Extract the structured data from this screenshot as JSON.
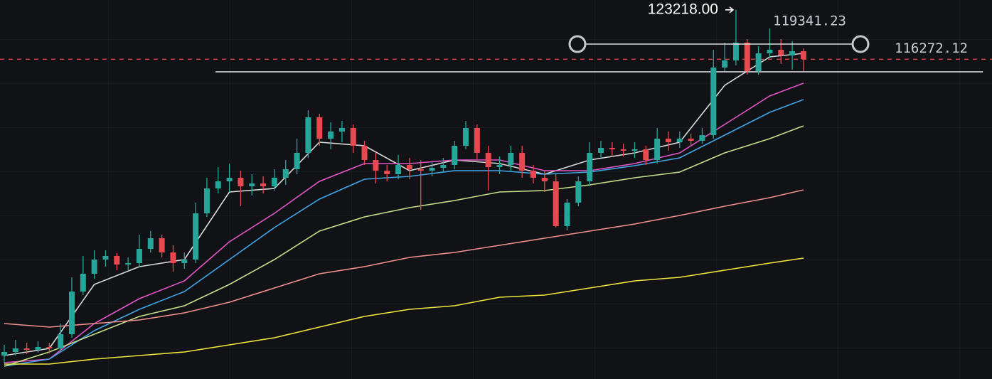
{
  "chart_data": {
    "type": "candlestick",
    "ylim": [
      71300,
      124600
    ],
    "up_color": "#26a69a",
    "down_color": "#e8484f",
    "open": [
      74600,
      75100,
      75600,
      75400,
      75800,
      75600,
      77600,
      83600,
      86100,
      88100,
      88600,
      87400,
      87600,
      89600,
      91100,
      89100,
      87600,
      88100,
      94600,
      98100,
      99100,
      99600,
      98400,
      98800,
      98400,
      99600,
      100800,
      103100,
      108100,
      105100,
      106100,
      106600,
      104100,
      102100,
      100600,
      100100,
      101400,
      100800,
      100600,
      101000,
      101400,
      104100,
      106600,
      103100,
      101100,
      101400,
      103100,
      100600,
      99600,
      99100,
      92800,
      96100,
      99100,
      103100,
      103800,
      103600,
      103400,
      103600,
      102100,
      105100,
      104600,
      105100,
      104800,
      105600,
      115100,
      116100,
      118600,
      114600,
      117100,
      117600,
      116800,
      117400
    ],
    "high": [
      76100,
      76800,
      76400,
      76600,
      76400,
      79100,
      85600,
      88600,
      89400,
      89400,
      89000,
      88400,
      91600,
      92100,
      91600,
      90100,
      89100,
      96100,
      99600,
      101100,
      101600,
      100600,
      100100,
      99800,
      100800,
      102100,
      105100,
      109100,
      108600,
      107400,
      107600,
      107100,
      104800,
      103100,
      101400,
      102800,
      102400,
      102100,
      101800,
      102400,
      104800,
      107600,
      107100,
      104100,
      102600,
      104100,
      104100,
      101400,
      100600,
      100100,
      96600,
      99800,
      104600,
      104800,
      104600,
      104400,
      104600,
      104100,
      106600,
      106100,
      106100,
      105800,
      106600,
      117600,
      118600,
      123218,
      119100,
      118100,
      120600,
      119100,
      118800,
      117800
    ],
    "low": [
      73600,
      74600,
      74800,
      75000,
      74900,
      75100,
      77100,
      83100,
      85400,
      87100,
      86600,
      86600,
      87100,
      89100,
      88400,
      86400,
      86800,
      87600,
      94100,
      97400,
      97600,
      95600,
      97100,
      97400,
      97800,
      98600,
      100100,
      102400,
      104100,
      103600,
      104600,
      103100,
      101400,
      98800,
      99100,
      99400,
      99400,
      95100,
      99800,
      100400,
      100800,
      103600,
      102100,
      97800,
      100100,
      100600,
      99600,
      98800,
      97600,
      92600,
      92200,
      95600,
      98400,
      102400,
      102600,
      102600,
      102400,
      101400,
      101600,
      103400,
      103800,
      104100,
      104400,
      105100,
      114600,
      115400,
      114100,
      114100,
      116400,
      115600,
      114800,
      114600
    ],
    "close": [
      75100,
      75600,
      75400,
      75800,
      75600,
      77600,
      83600,
      86100,
      88100,
      88600,
      87400,
      87600,
      89600,
      91100,
      89100,
      87600,
      88100,
      94600,
      98100,
      99100,
      99600,
      98400,
      98800,
      98400,
      99600,
      100800,
      103100,
      108100,
      105100,
      106100,
      106600,
      104100,
      102100,
      100600,
      100100,
      101400,
      100800,
      100600,
      101000,
      101400,
      104100,
      106600,
      103100,
      101100,
      101400,
      103100,
      100600,
      99600,
      99100,
      92800,
      96100,
      99100,
      103100,
      103800,
      103600,
      103400,
      103600,
      102100,
      105100,
      104600,
      105100,
      104800,
      105600,
      115100,
      116100,
      118600,
      114600,
      117100,
      117600,
      116800,
      117400,
      116272.12
    ],
    "ma_x": [
      0,
      4,
      8,
      12,
      16,
      20,
      24,
      28,
      32,
      36,
      40,
      44,
      48,
      52,
      56,
      60,
      64,
      68,
      71
    ],
    "series": [
      {
        "color": "#d9d9d9",
        "values": [
          74600,
          75600,
          84600,
          87100,
          88100,
          97600,
          98100,
          104600,
          104100,
          100600,
          102100,
          101600,
          100100,
          102100,
          103100,
          104600,
          112600,
          116600,
          117100
        ]
      },
      {
        "color": "#e256c7",
        "values": [
          73600,
          74100,
          79100,
          82600,
          85100,
          90600,
          94600,
          99100,
          101600,
          101600,
          102100,
          102100,
          100600,
          100600,
          101600,
          103100,
          107100,
          111100,
          112900
        ]
      },
      {
        "color": "#3ea6e6",
        "values": [
          73100,
          74100,
          78100,
          81100,
          83600,
          88100,
          92600,
          96600,
          99400,
          99800,
          100600,
          100600,
          100100,
          100400,
          101300,
          102400,
          105600,
          108800,
          110600
        ]
      },
      {
        "color": "#c4e08a",
        "values": [
          73100,
          75100,
          77600,
          80100,
          81600,
          84600,
          88100,
          92100,
          94100,
          95400,
          96400,
          97600,
          97800,
          98600,
          99600,
          100400,
          103100,
          105100,
          106900
        ]
      },
      {
        "color": "#f0908e",
        "values": [
          79100,
          78600,
          79100,
          79600,
          80600,
          82100,
          84100,
          86100,
          87100,
          88400,
          89100,
          90100,
          91100,
          92100,
          93100,
          94300,
          95600,
          96800,
          97900
        ]
      },
      {
        "color": "#f2e83c",
        "values": [
          73400,
          73400,
          74100,
          74600,
          75100,
          76100,
          77100,
          78600,
          80100,
          81100,
          81600,
          82800,
          83100,
          84100,
          85100,
          85600,
          86600,
          87600,
          88300
        ]
      }
    ],
    "price_line": {
      "value": 116272.12,
      "color": "#e8484f"
    },
    "ray": 118400,
    "level": 114500,
    "high_label": {
      "value": 123218,
      "label": "123218.00"
    },
    "range_label": 119341.23
  }
}
